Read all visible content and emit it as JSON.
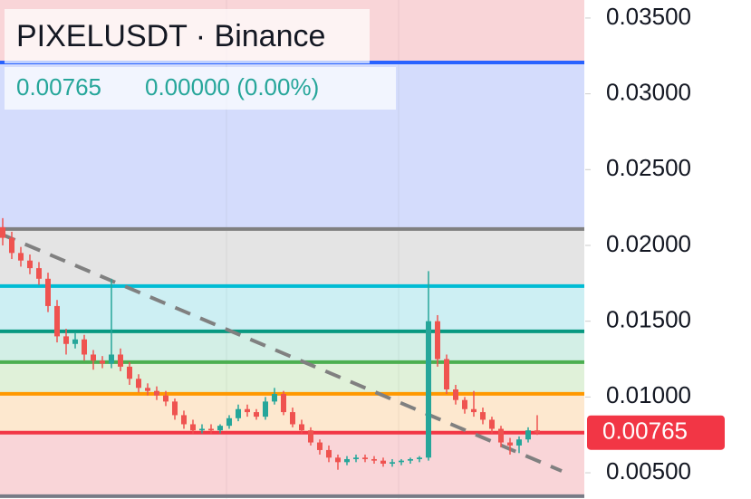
{
  "chart_data": {
    "type": "candlestick",
    "header": {
      "symbol": "PIXELUSDT · Binance",
      "last": "0.00765",
      "change": "0.00000 (0.00%)"
    },
    "price_tag": "0.00765",
    "ylim": [
      0.00327,
      0.03619
    ],
    "yticks": [
      {
        "value": 0.005,
        "label": "0.00500"
      },
      {
        "value": 0.01,
        "label": "0.01000"
      },
      {
        "value": 0.015,
        "label": "0.01500"
      },
      {
        "value": 0.02,
        "label": "0.02000"
      },
      {
        "value": 0.025,
        "label": "0.02500"
      },
      {
        "value": 0.03,
        "label": "0.03000"
      },
      {
        "value": 0.035,
        "label": "0.03500"
      }
    ],
    "up_color": "#26a69a",
    "down_color": "#ef5350",
    "top_fill": "#f9d5d8",
    "levels": [
      {
        "value": 0.03207,
        "color": "#2962ff",
        "fill": "#d4dcfc"
      },
      {
        "value": 0.02108,
        "color": "#808080",
        "fill": "#e4e4e4"
      },
      {
        "value": 0.01732,
        "color": "#00bcd4",
        "fill": "#cdeff3"
      },
      {
        "value": 0.01433,
        "color": "#089981",
        "fill": "#d3efe6"
      },
      {
        "value": 0.0123,
        "color": "#4caf50",
        "fill": "#e0f1d9"
      },
      {
        "value": 0.01021,
        "color": "#ff9800",
        "fill": "#fde8cf"
      },
      {
        "value": 0.00765,
        "color": "#f23645",
        "fill": "#f9d5d8"
      },
      {
        "value": 0.00346,
        "color": "#787b86",
        "fill": "#ffffff"
      }
    ],
    "trendline": {
      "x": [
        -0.3,
        61.7
      ],
      "values": [
        0.02078,
        0.00512
      ],
      "color": "#808080"
    },
    "open": [
      0.0212,
      0.0205,
      0.0195,
      0.019,
      0.0185,
      0.0178,
      0.016,
      0.014,
      0.0135,
      0.0138,
      0.0128,
      0.0124,
      0.0122,
      0.0128,
      0.012,
      0.0112,
      0.0106,
      0.0104,
      0.0101,
      0.0097,
      0.0088,
      0.0082,
      0.0078,
      0.0079,
      0.0078,
      0.0081,
      0.0086,
      0.0092,
      0.009,
      0.0087,
      0.0097,
      0.0102,
      0.009,
      0.0082,
      0.0078,
      0.007,
      0.0065,
      0.006,
      0.0057,
      0.0059,
      0.006,
      0.0059,
      0.0058,
      0.0056,
      0.0057,
      0.0058,
      0.0059,
      0.006,
      0.015,
      0.0125,
      0.0105,
      0.0098,
      0.0092,
      0.009,
      0.0085,
      0.0079,
      0.007,
      0.0068,
      0.0072,
      0.0078
    ],
    "high": [
      0.0218,
      0.0209,
      0.0199,
      0.0194,
      0.0189,
      0.0182,
      0.0164,
      0.0145,
      0.0142,
      0.0141,
      0.0131,
      0.0127,
      0.0178,
      0.0132,
      0.0123,
      0.0115,
      0.0109,
      0.0107,
      0.0104,
      0.0099,
      0.0091,
      0.0085,
      0.0082,
      0.0082,
      0.0082,
      0.0088,
      0.0095,
      0.0095,
      0.0092,
      0.01,
      0.0106,
      0.0104,
      0.0093,
      0.0085,
      0.008,
      0.0072,
      0.0068,
      0.0062,
      0.0061,
      0.0062,
      0.0062,
      0.0061,
      0.006,
      0.0059,
      0.0059,
      0.006,
      0.0061,
      0.0183,
      0.0154,
      0.0128,
      0.0108,
      0.01,
      0.0104,
      0.0093,
      0.0087,
      0.0081,
      0.0073,
      0.0074,
      0.008,
      0.0088
    ],
    "low": [
      0.02,
      0.0191,
      0.0186,
      0.0181,
      0.0174,
      0.0156,
      0.0136,
      0.0128,
      0.0132,
      0.0124,
      0.0118,
      0.0119,
      0.0119,
      0.0117,
      0.0108,
      0.0103,
      0.0101,
      0.0098,
      0.0094,
      0.0085,
      0.0079,
      0.0076,
      0.0076,
      0.0076,
      0.0076,
      0.0079,
      0.0084,
      0.0087,
      0.0085,
      0.0085,
      0.0095,
      0.0088,
      0.008,
      0.0076,
      0.0068,
      0.0062,
      0.0057,
      0.0052,
      0.0055,
      0.0057,
      0.0057,
      0.0056,
      0.0054,
      0.0054,
      0.0055,
      0.0056,
      0.0057,
      0.0058,
      0.012,
      0.0102,
      0.0095,
      0.0089,
      0.0087,
      0.0082,
      0.0076,
      0.0067,
      0.0062,
      0.0063,
      0.007,
      0.0075
    ],
    "close": [
      0.0205,
      0.0195,
      0.019,
      0.0185,
      0.0178,
      0.016,
      0.014,
      0.0135,
      0.0138,
      0.0128,
      0.0124,
      0.0122,
      0.0128,
      0.012,
      0.0112,
      0.0106,
      0.0104,
      0.0101,
      0.0097,
      0.0088,
      0.0082,
      0.0078,
      0.0079,
      0.0078,
      0.0081,
      0.0086,
      0.0092,
      0.009,
      0.0087,
      0.0097,
      0.0102,
      0.009,
      0.0082,
      0.0078,
      0.007,
      0.0065,
      0.006,
      0.0057,
      0.0059,
      0.006,
      0.0059,
      0.0058,
      0.0056,
      0.0057,
      0.0058,
      0.0059,
      0.006,
      0.015,
      0.0125,
      0.0105,
      0.0098,
      0.0092,
      0.009,
      0.0085,
      0.0079,
      0.007,
      0.0068,
      0.0072,
      0.0078,
      0.00765
    ]
  }
}
